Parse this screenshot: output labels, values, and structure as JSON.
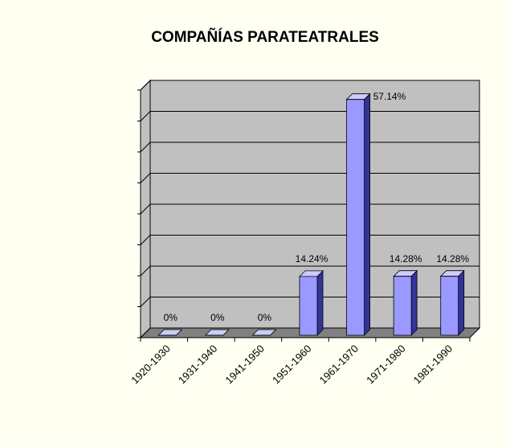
{
  "chart_data": {
    "type": "bar3d",
    "title": "COMPAÑÍAS PARATEATRALES",
    "categories": [
      "1920-1930",
      "1931-1940",
      "1941-1950",
      "1951-1960",
      "1961-1970",
      "1971-1980",
      "1981-1990"
    ],
    "values": [
      0,
      0,
      0,
      14.24,
      57.14,
      14.28,
      14.28
    ],
    "value_labels": [
      "0%",
      "0%",
      "0%",
      "14.24%",
      "57.14%",
      "14.28%",
      "14.28%"
    ],
    "color": "#9999ff",
    "ylim": [
      0,
      60
    ],
    "yticks": [
      0,
      7.5,
      15,
      22.5,
      30,
      37.5,
      45,
      52.5,
      60
    ],
    "grid": true
  }
}
